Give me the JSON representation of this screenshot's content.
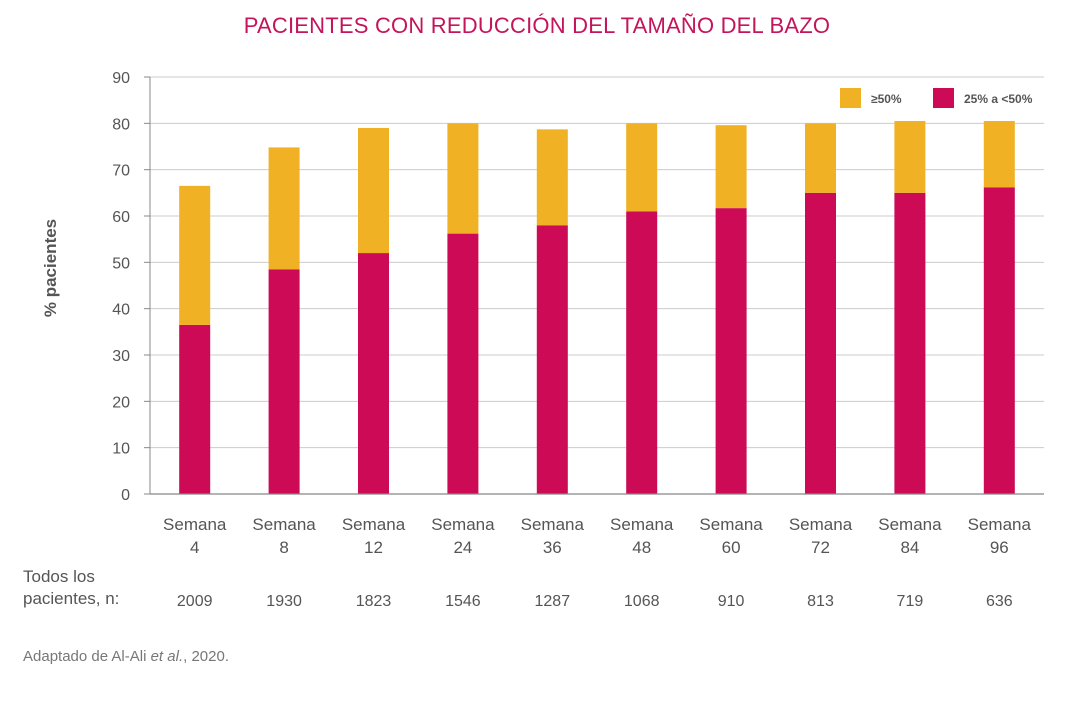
{
  "chart_data": {
    "type": "bar",
    "stacked": true,
    "title": "PACIENTES CON REDUCCIÓN DEL TAMAÑO DEL BAZO",
    "ylabel": "% pacientes",
    "xlabel": "",
    "ylim": [
      0,
      90
    ],
    "yticks": [
      0,
      10,
      20,
      30,
      40,
      50,
      60,
      70,
      80,
      90
    ],
    "grid": true,
    "legend_position": "top-right",
    "categories": [
      [
        "Semana",
        "4"
      ],
      [
        "Semana",
        "8"
      ],
      [
        "Semana",
        "12"
      ],
      [
        "Semana",
        "24"
      ],
      [
        "Semana",
        "36"
      ],
      [
        "Semana",
        "48"
      ],
      [
        "Semana",
        "60"
      ],
      [
        "Semana",
        "72"
      ],
      [
        "Semana",
        "84"
      ],
      [
        "Semana",
        "96"
      ]
    ],
    "series": [
      {
        "name": "25% a <50%",
        "color": "#cc0a55",
        "values": [
          36.5,
          48.5,
          52,
          56.2,
          58,
          61,
          61.7,
          65,
          65,
          66.2
        ]
      },
      {
        "name": "≥50%",
        "color": "#f0b125",
        "values": [
          30,
          26.3,
          27,
          23.8,
          20.7,
          19,
          17.9,
          15,
          15.5,
          14.3
        ]
      }
    ],
    "legend": [
      {
        "label": "≥50%",
        "color": "#f0b125"
      },
      {
        "label": "25% a <50%",
        "color": "#cc0a55"
      }
    ],
    "n_label_lines": [
      "Todos los",
      "pacientes, n:"
    ],
    "n_values": [
      "2009",
      "1930",
      "1823",
      "1546",
      "1287",
      "1068",
      "910",
      "813",
      "719",
      "636"
    ]
  },
  "source": {
    "prefix": "Adaptado de Al-Ali ",
    "italic": "et al.",
    "suffix": ", 2020."
  }
}
